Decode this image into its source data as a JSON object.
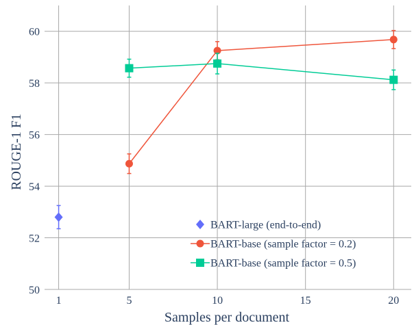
{
  "chart_data": {
    "type": "scatter",
    "xlabel": "Samples per document",
    "ylabel": "ROUGE-1 F1",
    "xlim": [
      0.2,
      21.0
    ],
    "ylim": [
      50,
      61
    ],
    "x_tick_values": [
      1,
      5,
      10,
      15,
      20
    ],
    "x_tick_labels": [
      "1",
      "5",
      "10",
      "15",
      "20"
    ],
    "y_tick_values": [
      50,
      52,
      54,
      56,
      58,
      60
    ],
    "y_tick_labels": [
      "50",
      "52",
      "54",
      "56",
      "58",
      "60"
    ],
    "grid": true,
    "legend_position": "bottom-right",
    "series": [
      {
        "name": "BART-large (end-to-end)",
        "color": "#636efa",
        "marker": "diamond",
        "mode": "markers",
        "points": [
          {
            "x": 1,
            "y": 52.8,
            "err": 0.45
          }
        ]
      },
      {
        "name": "BART-base (sample factor = 0.2)",
        "color": "#ef553b",
        "marker": "circle",
        "mode": "lines+markers",
        "points": [
          {
            "x": 5,
            "y": 54.87,
            "err": 0.38
          },
          {
            "x": 10,
            "y": 59.25,
            "err": 0.35
          },
          {
            "x": 20,
            "y": 59.68,
            "err": 0.35
          }
        ]
      },
      {
        "name": "BART-base (sample factor = 0.5)",
        "color": "#00cc96",
        "marker": "square",
        "mode": "lines+markers",
        "points": [
          {
            "x": 5,
            "y": 58.57,
            "err": 0.35
          },
          {
            "x": 10,
            "y": 58.75,
            "err": 0.4
          },
          {
            "x": 20,
            "y": 58.12,
            "err": 0.38
          }
        ]
      }
    ]
  }
}
